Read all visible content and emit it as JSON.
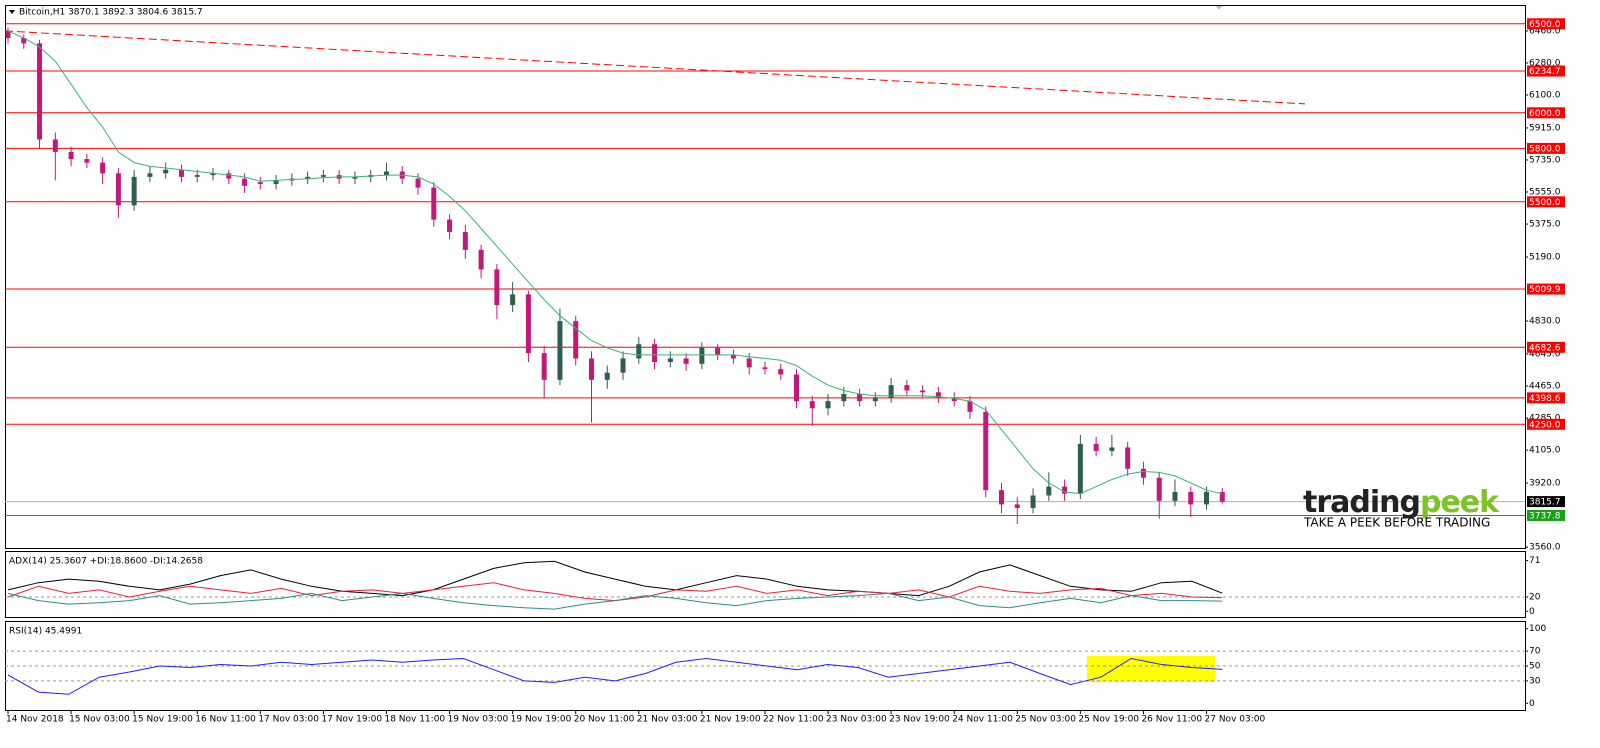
{
  "chart_data": [
    {
      "type": "candlestick",
      "title": "Bitcoin,H1  3870.1 3892.3 3804.6 3815.7",
      "categories": [
        "14 Nov 2018",
        null,
        null,
        null,
        "15 Nov 03:00",
        null,
        null,
        null,
        "15 Nov 19:00",
        null,
        null,
        null,
        "16 Nov 11:00",
        null,
        null,
        null,
        "17 Nov 03:00",
        null,
        null,
        null,
        "17 Nov 19:00",
        null,
        null,
        null,
        "18 Nov 11:00",
        null,
        null,
        null,
        "19 Nov 03:00",
        null,
        null,
        null,
        "19 Nov 19:00",
        null,
        null,
        null,
        "20 Nov 11:00",
        null,
        null,
        null,
        "21 Nov 03:00",
        null,
        null,
        null,
        "21 Nov 19:00",
        null,
        null,
        null,
        "22 Nov 11:00",
        null,
        null,
        null,
        "23 Nov 03:00",
        null,
        null,
        null,
        "23 Nov 19:00",
        null,
        null,
        null,
        "24 Nov 11:00",
        null,
        null,
        null,
        "25 Nov 03:00",
        null,
        null,
        null,
        "25 Nov 19:00",
        null,
        null,
        null,
        "26 Nov 11:00",
        null,
        null,
        null,
        "27 Nov 03:00",
        null
      ],
      "open": [
        6460,
        6420,
        6390,
        5850,
        5780,
        5740,
        5720,
        5660,
        5480,
        5640,
        5660,
        5680,
        5640,
        5650,
        5660,
        5630,
        5610,
        5600,
        5620,
        5630,
        5640,
        5650,
        5630,
        5640,
        5650,
        5670,
        5630,
        5580,
        5400,
        5330,
        5230,
        5120,
        4920,
        4980,
        4650,
        4500,
        4830,
        4620,
        4500,
        4540,
        4620,
        4700,
        4600,
        4620,
        4590,
        4680,
        4640,
        4620,
        4570,
        4560,
        4530,
        4380,
        4340,
        4380,
        4420,
        4380,
        4400,
        4470,
        4440,
        4430,
        4400,
        4380,
        4320,
        3880,
        3800,
        3780,
        3850,
        3900,
        3860,
        4140,
        4100,
        4120,
        4000,
        3950,
        3820,
        3870,
        3800,
        3870.1
      ],
      "high": [
        6480,
        6440,
        6410,
        5890,
        5810,
        5770,
        5750,
        5690,
        5680,
        5700,
        5720,
        5710,
        5680,
        5690,
        5680,
        5660,
        5640,
        5650,
        5660,
        5670,
        5680,
        5680,
        5670,
        5680,
        5720,
        5700,
        5660,
        5610,
        5430,
        5370,
        5260,
        5150,
        5050,
        5000,
        4690,
        4900,
        4860,
        4660,
        4580,
        4660,
        4740,
        4730,
        4660,
        4650,
        4710,
        4700,
        4670,
        4650,
        4600,
        4590,
        4560,
        4410,
        4420,
        4460,
        4450,
        4430,
        4510,
        4500,
        4470,
        4460,
        4430,
        4410,
        4350,
        3920,
        3840,
        3890,
        3980,
        3940,
        4190,
        4180,
        4190,
        4150,
        4040,
        3980,
        3940,
        3900,
        3900,
        3892.3
      ],
      "low": [
        6390,
        6360,
        5800,
        5620,
        5700,
        5690,
        5600,
        5410,
        5450,
        5610,
        5630,
        5610,
        5610,
        5620,
        5600,
        5550,
        5570,
        5570,
        5590,
        5600,
        5610,
        5600,
        5600,
        5610,
        5620,
        5600,
        5540,
        5360,
        5290,
        5180,
        5070,
        4840,
        4880,
        4600,
        4400,
        4470,
        4580,
        4260,
        4450,
        4500,
        4590,
        4560,
        4570,
        4550,
        4560,
        4610,
        4590,
        4530,
        4530,
        4500,
        4340,
        4240,
        4300,
        4350,
        4350,
        4350,
        4370,
        4410,
        4400,
        4370,
        4350,
        4280,
        3840,
        3750,
        3690,
        3750,
        3820,
        3820,
        3830,
        4070,
        4070,
        3960,
        3910,
        3720,
        3790,
        3730,
        3770,
        3804.6
      ],
      "close": [
        6420,
        6390,
        5850,
        5780,
        5740,
        5720,
        5660,
        5480,
        5640,
        5660,
        5680,
        5640,
        5650,
        5660,
        5630,
        5590,
        5600,
        5620,
        5630,
        5640,
        5650,
        5630,
        5640,
        5650,
        5670,
        5630,
        5580,
        5400,
        5330,
        5230,
        5120,
        4920,
        4980,
        4650,
        4500,
        4830,
        4620,
        4500,
        4540,
        4620,
        4700,
        4600,
        4620,
        4590,
        4680,
        4640,
        4620,
        4570,
        4560,
        4530,
        4380,
        4340,
        4380,
        4420,
        4380,
        4400,
        4470,
        4440,
        4430,
        4400,
        4380,
        4320,
        3880,
        3800,
        3780,
        3850,
        3900,
        3860,
        4140,
        4100,
        4120,
        4000,
        3950,
        3820,
        3870,
        3800,
        3870.1,
        3815.7
      ],
      "up_color": "#2f5d50",
      "down_color": "#c2187a",
      "ma": {
        "color": "#3cb371",
        "values": [
          6460,
          6420,
          6370,
          6290,
          6160,
          6030,
          5920,
          5780,
          5720,
          5700,
          5690,
          5680,
          5670,
          5660,
          5650,
          5640,
          5615,
          5620,
          5625,
          5630,
          5635,
          5640,
          5640,
          5645,
          5650,
          5650,
          5640,
          5600,
          5530,
          5450,
          5350,
          5250,
          5150,
          5050,
          4950,
          4860,
          4790,
          4720,
          4680,
          4650,
          4640,
          4640,
          4640,
          4640,
          4640,
          4640,
          4640,
          4630,
          4620,
          4610,
          4580,
          4520,
          4470,
          4440,
          4420,
          4410,
          4410,
          4410,
          4410,
          4405,
          4395,
          4380,
          4330,
          4220,
          4110,
          4000,
          3920,
          3870,
          3860,
          3900,
          3940,
          3970,
          3985,
          3980,
          3960,
          3920,
          3880,
          3860
        ]
      },
      "trendline": {
        "color": "#ff0000",
        "values": [
          6460,
          6050
        ]
      },
      "levels": [
        {
          "value": 6500,
          "label": "6500.0",
          "color": "#ff0000"
        },
        {
          "value": 6234.7,
          "label": "6234.7",
          "color": "#ff0000"
        },
        {
          "value": 6000,
          "label": "6000.0",
          "color": "#ff0000"
        },
        {
          "value": 5800,
          "label": "5800.0",
          "color": "#ff0000"
        },
        {
          "value": 5500,
          "label": "5500.0",
          "color": "#ff0000"
        },
        {
          "value": 5009.9,
          "label": "5009.9",
          "color": "#ff0000"
        },
        {
          "value": 4682.6,
          "label": "4682.6",
          "color": "#ff0000"
        },
        {
          "value": 4398.6,
          "label": "4398.6",
          "color": "#ff0000"
        },
        {
          "value": 4250,
          "label": "4250.0",
          "color": "#ff0000"
        },
        {
          "value": 3737.8,
          "label": "3737.8",
          "color": "#16a016"
        },
        {
          "value": 3815.7,
          "label": "3815.7",
          "color": "#000000"
        }
      ],
      "ylim": [
        3555,
        6600
      ],
      "yticks": [
        {
          "value": 6460,
          "label": "6460.0"
        },
        {
          "value": 6280,
          "label": "6280.0"
        },
        {
          "value": 6100,
          "label": "6100.0"
        },
        {
          "value": 5915,
          "label": "5915.0"
        },
        {
          "value": 5735,
          "label": "5735.0"
        },
        {
          "value": 5555,
          "label": "5555.0"
        },
        {
          "value": 5375,
          "label": "5375.0"
        },
        {
          "value": 5190,
          "label": "5190.0"
        },
        {
          "value": 4830,
          "label": "4830.0"
        },
        {
          "value": 4645,
          "label": "4645.0"
        },
        {
          "value": 4465,
          "label": "4465.0"
        },
        {
          "value": 4285,
          "label": "4285.0"
        },
        {
          "value": 4105,
          "label": "4105.0"
        },
        {
          "value": 3920,
          "label": "3920.0"
        },
        {
          "value": 3560,
          "label": "3560.0"
        }
      ]
    },
    {
      "type": "line",
      "title": "ADX(14) 25.3607 +DI:18.8600 -DI:14.2658",
      "series": [
        {
          "color": "#000000",
          "values": [
            30,
            40,
            45,
            42,
            35,
            30,
            38,
            50,
            58,
            45,
            35,
            28,
            25,
            22,
            30,
            45,
            60,
            68,
            70,
            55,
            45,
            35,
            30,
            40,
            50,
            45,
            35,
            30,
            28,
            25,
            22,
            35,
            55,
            65,
            50,
            35,
            30,
            28,
            40,
            42,
            25.3607
          ]
        },
        {
          "color": "#e8203c",
          "values": [
            20,
            35,
            25,
            30,
            20,
            28,
            35,
            30,
            25,
            32,
            22,
            28,
            30,
            25,
            30,
            35,
            40,
            30,
            25,
            18,
            15,
            20,
            30,
            28,
            35,
            25,
            30,
            22,
            28,
            25,
            30,
            20,
            35,
            28,
            25,
            30,
            32,
            22,
            25,
            20,
            18.86
          ]
        },
        {
          "color": "#2e8b8b",
          "values": [
            25,
            15,
            10,
            12,
            15,
            22,
            10,
            12,
            15,
            18,
            25,
            15,
            20,
            25,
            18,
            12,
            8,
            5,
            3,
            10,
            15,
            22,
            18,
            12,
            8,
            15,
            18,
            20,
            22,
            25,
            15,
            20,
            8,
            5,
            12,
            18,
            12,
            22,
            15,
            15,
            14.2658
          ]
        }
      ],
      "levels": [
        20
      ],
      "ylim": [
        -8,
        83
      ],
      "yticks": [
        71,
        20,
        0
      ]
    },
    {
      "type": "line",
      "title": "RSI(14) 45.4991",
      "series": [
        {
          "color": "#1e1eff",
          "values": [
            38,
            15,
            12,
            35,
            42,
            50,
            48,
            52,
            50,
            55,
            52,
            55,
            58,
            55,
            58,
            60,
            45,
            30,
            28,
            35,
            30,
            40,
            55,
            60,
            55,
            50,
            45,
            52,
            48,
            35,
            40,
            45,
            50,
            55,
            40,
            25,
            35,
            60,
            52,
            48,
            45.4991
          ]
        }
      ],
      "levels": [
        70,
        50,
        30
      ],
      "ylim": [
        -9,
        109
      ],
      "yticks": [
        100,
        70,
        50,
        30,
        0
      ]
    }
  ],
  "watermark": {
    "brand": [
      "trading",
      "peek"
    ],
    "tagline": "TAKE A PEEK BEFORE TRADING"
  }
}
